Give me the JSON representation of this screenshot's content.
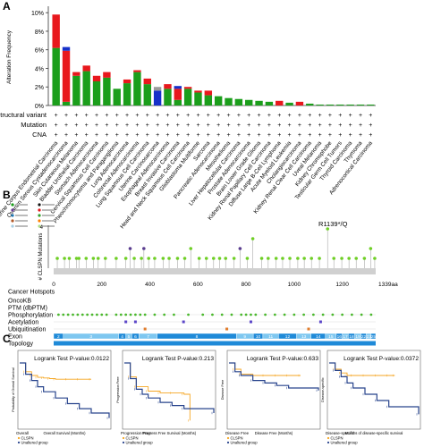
{
  "panels": {
    "a": {
      "label": "A"
    },
    "b": {
      "label": "B"
    },
    "c": {
      "label": "C"
    }
  },
  "colors": {
    "mutation": "#1b9e1b",
    "amplification": "#e8181d",
    "deep_deletion": "#1630c9",
    "multiple": "#9b9b9b",
    "legend_icons": [
      "#1b9e1b",
      "#111111",
      "#6a3d9a",
      "#e31a1c",
      "#1f78b4",
      "#33a02c",
      "#b15928",
      "#ff7f00",
      "#a6cee3",
      "#b2df8a"
    ],
    "green_point": "#6fcf25",
    "purple_point": "#5a3c8f",
    "topology_bar": "#1f8ad8",
    "topology_alt": "#7ec7f0",
    "km_high": "#f5a623",
    "km_low": "#27438c"
  },
  "chart_data": [
    {
      "type": "bar",
      "panel": "A",
      "ylabel": "Alteration Frequency",
      "yticks": [
        "0%",
        "2%",
        "4%",
        "6%",
        "8%",
        "10%"
      ],
      "ylim": [
        0,
        10.5
      ],
      "row_labels": [
        "Structural variant",
        "Mutation",
        "CNA"
      ],
      "row_marker": "+",
      "series_order": [
        "mutation",
        "amplification",
        "deep_deletion",
        "multiple"
      ],
      "categories": [
        "Uterine Corpus Endometrial Carcinoma",
        "Ovarian Serous Cystadenocarcinoma",
        "Skin Cutaneous Melanoma",
        "Bladder Urothelial Carcinoma",
        "Stomach Adenocarcinoma",
        "Cervical Squamous Cell Carcinoma",
        "Pheochromocytoma and Paraganglioma",
        "Lung Adenocarcinoma",
        "Colorectal Adenocarcinoma",
        "Lung Squamous Cell Carcinoma",
        "Uterine Carcinosarcoma",
        "Esophageal Adenocarcinoma",
        "Breast Invasive Carcinoma",
        "Head and Neck Squamous Cell Carcinoma",
        "Glioblastoma Multiforme",
        "Sarcoma",
        "Pancreatic Adenocarcinoma",
        "Mesothelioma",
        "Liver Hepatocellular Carcinoma",
        "Prostate Adenocarcinoma",
        "Brain Lower Grade Glioma",
        "Kidney Renal Papillary Cell Carcinoma",
        "Diffuse Large B-Cell Lymphoma",
        "Acute Myeloid Leukemia",
        "Cholangiocarcinoma",
        "Kidney Renal Clear Cell Carcinoma",
        "Uveal Melanoma",
        "Kidney Chromophobe",
        "Testicular Germ Cell Tumors",
        "Thyroid Carcinoma",
        "Thymoma",
        "Adrenocortical Carcinoma"
      ],
      "series": [
        {
          "key": "mutation",
          "values": [
            6.2,
            0.4,
            3.2,
            3.7,
            2.6,
            3.0,
            1.8,
            2.4,
            3.6,
            2.3,
            0.0,
            1.8,
            0.6,
            1.8,
            1.4,
            1.1,
            1.0,
            0.8,
            0.7,
            0.6,
            0.5,
            0.4,
            0.0,
            0.3,
            0.0,
            0.2,
            0.1,
            0.1,
            0.1,
            0.1,
            0.1,
            0.1
          ]
        },
        {
          "key": "amplification",
          "values": [
            3.6,
            5.5,
            0.4,
            0.6,
            0.6,
            0.6,
            0.0,
            0.4,
            0.2,
            0.6,
            0.0,
            0.5,
            1.2,
            0.2,
            0.2,
            0.5,
            0.0,
            0.0,
            0.0,
            0.0,
            0.0,
            0.0,
            0.5,
            0.0,
            0.4,
            0.0,
            0.0,
            0.0,
            0.0,
            0.0,
            0.0,
            0.0
          ]
        },
        {
          "key": "deep_deletion",
          "values": [
            0.0,
            0.4,
            0.0,
            0.0,
            0.0,
            0.0,
            0.0,
            0.0,
            0.0,
            0.0,
            1.6,
            0.0,
            0.3,
            0.0,
            0.0,
            0.0,
            0.0,
            0.0,
            0.0,
            0.0,
            0.0,
            0.0,
            0.0,
            0.0,
            0.0,
            0.0,
            0.0,
            0.0,
            0.0,
            0.0,
            0.0,
            0.0
          ]
        },
        {
          "key": "multiple",
          "values": [
            0.0,
            0.0,
            0.0,
            0.0,
            0.0,
            0.0,
            0.0,
            0.0,
            0.0,
            0.0,
            0.4,
            0.0,
            0.0,
            0.0,
            0.0,
            0.0,
            0.0,
            0.0,
            0.0,
            0.0,
            0.0,
            0.0,
            0.0,
            0.0,
            0.0,
            0.0,
            0.0,
            0.0,
            0.0,
            0.0,
            0.0,
            0.0
          ]
        }
      ]
    },
    {
      "type": "scatter",
      "panel": "B",
      "ylabel": "# CLSPN Mutations",
      "ytick_top": "4",
      "xticks": [
        "0",
        "200",
        "400",
        "600",
        "800",
        "1000",
        "1200"
      ],
      "xlim": [
        0,
        1339
      ],
      "x_end_label": "1339aa",
      "hotspot_label": "R1139*/Q",
      "points": [
        [
          15,
          1,
          "g"
        ],
        [
          45,
          1,
          "g"
        ],
        [
          65,
          1,
          "g"
        ],
        [
          95,
          1,
          "g"
        ],
        [
          105,
          1,
          "g"
        ],
        [
          135,
          1,
          "g"
        ],
        [
          165,
          1,
          "g"
        ],
        [
          185,
          1,
          "g"
        ],
        [
          215,
          1,
          "g"
        ],
        [
          260,
          1,
          "g"
        ],
        [
          300,
          1,
          "g"
        ],
        [
          318,
          2,
          "p"
        ],
        [
          335,
          1,
          "g"
        ],
        [
          365,
          1,
          "g"
        ],
        [
          375,
          2,
          "p"
        ],
        [
          395,
          1,
          "g"
        ],
        [
          420,
          1,
          "g"
        ],
        [
          455,
          1,
          "g"
        ],
        [
          480,
          1,
          "g"
        ],
        [
          515,
          1,
          "g"
        ],
        [
          545,
          1,
          "g"
        ],
        [
          570,
          2,
          "g"
        ],
        [
          605,
          1,
          "g"
        ],
        [
          635,
          1,
          "g"
        ],
        [
          665,
          1,
          "g"
        ],
        [
          690,
          1,
          "g"
        ],
        [
          715,
          1,
          "g"
        ],
        [
          750,
          1,
          "g"
        ],
        [
          775,
          2,
          "p"
        ],
        [
          805,
          1,
          "g"
        ],
        [
          828,
          3,
          "g"
        ],
        [
          865,
          1,
          "g"
        ],
        [
          892,
          1,
          "g"
        ],
        [
          925,
          1,
          "g"
        ],
        [
          952,
          1,
          "g"
        ],
        [
          982,
          1,
          "g"
        ],
        [
          1015,
          1,
          "g"
        ],
        [
          1042,
          1,
          "g"
        ],
        [
          1072,
          1,
          "g"
        ],
        [
          1105,
          1,
          "g"
        ],
        [
          1139,
          4,
          "g"
        ],
        [
          1165,
          1,
          "g"
        ],
        [
          1198,
          1,
          "g"
        ],
        [
          1228,
          1,
          "g"
        ],
        [
          1258,
          1,
          "g"
        ],
        [
          1292,
          1,
          "g"
        ],
        [
          1318,
          2,
          "g"
        ],
        [
          1335,
          1,
          "g"
        ]
      ],
      "track_labels": [
        "Cancer Hotspots",
        "OncoKB",
        "PTM (dbPTM)",
        "Phosphorylation",
        "Acetylation",
        "Ubiquitination",
        "Exon",
        "Topology"
      ],
      "phospho_sites": [
        20,
        40,
        60,
        80,
        100,
        120,
        140,
        160,
        180,
        200,
        220,
        260,
        280,
        300,
        320,
        340,
        360,
        380,
        420,
        460,
        500,
        560,
        620,
        660,
        700,
        740,
        780,
        800,
        820,
        840,
        880,
        920,
        960,
        1000,
        1040,
        1080,
        1120,
        1160,
        1200,
        1240,
        1280,
        1320
      ],
      "acetyl_sites": [
        300,
        340,
        540,
        820,
        1110
      ],
      "ubiq_sites": [
        380,
        720,
        1060
      ],
      "exons": [
        {
          "label": "2",
          "start": 0,
          "end": 40
        },
        {
          "label": "3",
          "start": 40,
          "end": 270
        },
        {
          "label": "4",
          "start": 270,
          "end": 300
        },
        {
          "label": "5",
          "start": 300,
          "end": 325
        },
        {
          "label": "6",
          "start": 325,
          "end": 355
        },
        {
          "label": "7",
          "start": 355,
          "end": 430
        },
        {
          "label": "8",
          "start": 430,
          "end": 760
        },
        {
          "label": "9",
          "start": 760,
          "end": 830
        },
        {
          "label": "10",
          "start": 830,
          "end": 870
        },
        {
          "label": "11",
          "start": 870,
          "end": 935
        },
        {
          "label": "12",
          "start": 935,
          "end": 1010
        },
        {
          "label": "13",
          "start": 1010,
          "end": 1070
        },
        {
          "label": "14",
          "start": 1070,
          "end": 1130
        },
        {
          "label": "15",
          "start": 1130,
          "end": 1175
        },
        {
          "label": "16",
          "start": 1175,
          "end": 1200
        },
        {
          "label": "17",
          "start": 1200,
          "end": 1225
        },
        {
          "label": "18",
          "start": 1225,
          "end": 1252
        },
        {
          "label": "19",
          "start": 1252,
          "end": 1278
        },
        {
          "label": "22",
          "start": 1278,
          "end": 1300
        },
        {
          "label": "23",
          "start": 1300,
          "end": 1320
        },
        {
          "label": "25",
          "start": 1320,
          "end": 1339
        }
      ]
    },
    {
      "type": "line",
      "panel": "C",
      "title": "Overall",
      "pvalue": "Logrank Test P-value:0.0122",
      "ylabel": "Probability of Overall Survival",
      "xlabel": "Overall Survival (Months)",
      "legend": [
        "CLSPN",
        "Unaltered group"
      ],
      "xlim": [
        0,
        150
      ],
      "series": [
        {
          "key": "high",
          "x": [
            0,
            10,
            20,
            30,
            40,
            50,
            60,
            80,
            100,
            120
          ],
          "y": [
            1.0,
            0.86,
            0.8,
            0.77,
            0.76,
            0.75,
            0.74,
            0.74,
            0.74,
            0.74
          ]
        },
        {
          "key": "low",
          "x": [
            0,
            10,
            20,
            30,
            40,
            60,
            80,
            100,
            120,
            150
          ],
          "y": [
            1.0,
            0.82,
            0.72,
            0.62,
            0.54,
            0.44,
            0.35,
            0.27,
            0.2,
            0.12
          ]
        }
      ]
    },
    {
      "type": "line",
      "panel": "C",
      "title": "Progression Free",
      "pvalue": "Logrank Test P-value:0.213",
      "ylabel": "Progression Free",
      "xlabel": "Progress Free Survival (Months)",
      "legend": [
        "CLSPN",
        "Unaltered group"
      ],
      "xlim": [
        0,
        150
      ],
      "series": [
        {
          "key": "high",
          "x": [
            0,
            10,
            20,
            40,
            60,
            80,
            100,
            110
          ],
          "y": [
            1.0,
            0.78,
            0.62,
            0.55,
            0.52,
            0.52,
            0.5,
            0.08
          ]
        },
        {
          "key": "low",
          "x": [
            0,
            10,
            20,
            30,
            40,
            60,
            80,
            100,
            150
          ],
          "y": [
            1.0,
            0.75,
            0.58,
            0.5,
            0.44,
            0.37,
            0.32,
            0.27,
            0.2
          ]
        }
      ]
    },
    {
      "type": "line",
      "panel": "C",
      "title": "Disease Free",
      "pvalue": "Logrank Test P-value:0.633",
      "ylabel": "Disease Free",
      "xlabel": "Disease Free (Months)",
      "legend": [
        "CLSPN",
        "Unaltered group"
      ],
      "xlim": [
        0,
        150
      ],
      "series": [
        {
          "key": "high",
          "x": [
            0,
            10,
            20,
            40,
            60,
            80,
            100,
            120
          ],
          "y": [
            1.0,
            0.9,
            0.82,
            0.8,
            0.8,
            0.8,
            0.8,
            0.8
          ]
        },
        {
          "key": "low",
          "x": [
            0,
            10,
            20,
            40,
            60,
            80,
            100,
            150
          ],
          "y": [
            1.0,
            0.86,
            0.8,
            0.72,
            0.68,
            0.64,
            0.6,
            0.56
          ]
        }
      ]
    },
    {
      "type": "line",
      "panel": "C",
      "title": "Disease-specific",
      "pvalue": "Logrank Test P-value:0.0372",
      "ylabel": "Disease-specific",
      "xlabel": "Months of disease-specific survival",
      "legend": [
        "CLSPN",
        "Unaltered group"
      ],
      "xlim": [
        0,
        150
      ],
      "series": [
        {
          "key": "high",
          "x": [
            0,
            10,
            20,
            30,
            40,
            60,
            80,
            100,
            110
          ],
          "y": [
            1.0,
            0.9,
            0.84,
            0.8,
            0.8,
            0.8,
            0.8,
            0.8,
            0.8
          ]
        },
        {
          "key": "low",
          "x": [
            0,
            10,
            20,
            30,
            40,
            60,
            80,
            100,
            150
          ],
          "y": [
            1.0,
            0.88,
            0.78,
            0.68,
            0.6,
            0.5,
            0.4,
            0.3,
            0.18
          ]
        }
      ]
    }
  ]
}
